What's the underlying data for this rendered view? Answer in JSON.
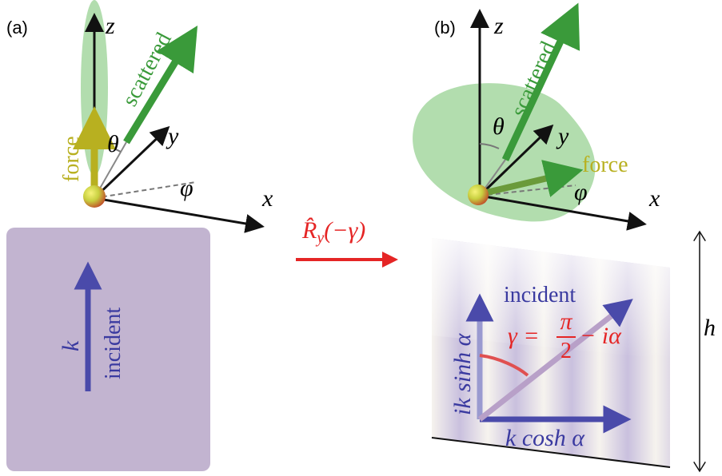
{
  "panels": [
    {
      "label": "(a)",
      "axes": {
        "x": "x",
        "y": "y",
        "z": "z"
      },
      "angles": {
        "theta": "θ",
        "phi": "φ"
      },
      "arrows": {
        "scattered": "scattered",
        "force": "force"
      },
      "wave": {
        "vector": "k",
        "label": "incident"
      }
    },
    {
      "label": "(b)",
      "axes": {
        "x": "x",
        "y": "y",
        "z": "z"
      },
      "angles": {
        "theta": "θ",
        "phi": "φ"
      },
      "arrows": {
        "scattered": "scattered",
        "force": "force"
      },
      "wave": {
        "label": "incident",
        "gamma": {
          "lhs": "γ =",
          "numerator": "π",
          "denominator": "2",
          "rest": "− iα"
        },
        "vertical": "ik sinh α",
        "horizontal": "k cosh α"
      }
    }
  ],
  "transform": {
    "operator": "R̂",
    "subscript": "y",
    "argument": "(−γ)"
  },
  "height_label": "h"
}
